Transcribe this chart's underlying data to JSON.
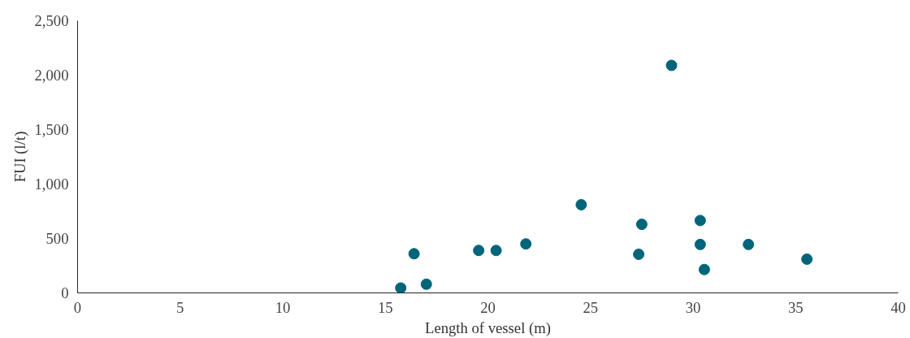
{
  "chart_data": {
    "type": "scatter",
    "xlabel": "Length of vessel (m)",
    "ylabel": "FUI (l/t)",
    "x": [
      15.75,
      16.4,
      17.0,
      19.55,
      20.4,
      21.85,
      24.55,
      27.35,
      27.5,
      28.95,
      30.35,
      30.35,
      30.55,
      32.7,
      35.55
    ],
    "series": [
      {
        "color": "#00657a",
        "values": [
          45,
          360,
          80,
          390,
          390,
          450,
          810,
          355,
          630,
          2090,
          665,
          445,
          215,
          445,
          310
        ]
      }
    ],
    "xlim": [
      0,
      40
    ],
    "xticks": [
      0,
      5,
      10,
      15,
      20,
      25,
      30,
      35,
      40
    ],
    "ylim": [
      0,
      2500
    ],
    "yticks": [
      0,
      {
        "value": 500,
        "label": "500"
      },
      {
        "value": 1000,
        "label": "1,000"
      },
      {
        "value": 1500,
        "label": "1,500"
      },
      {
        "value": 2000,
        "label": "2,000"
      },
      {
        "value": 2500,
        "label": "2,500"
      }
    ],
    "grid": false,
    "marker": "circle"
  }
}
